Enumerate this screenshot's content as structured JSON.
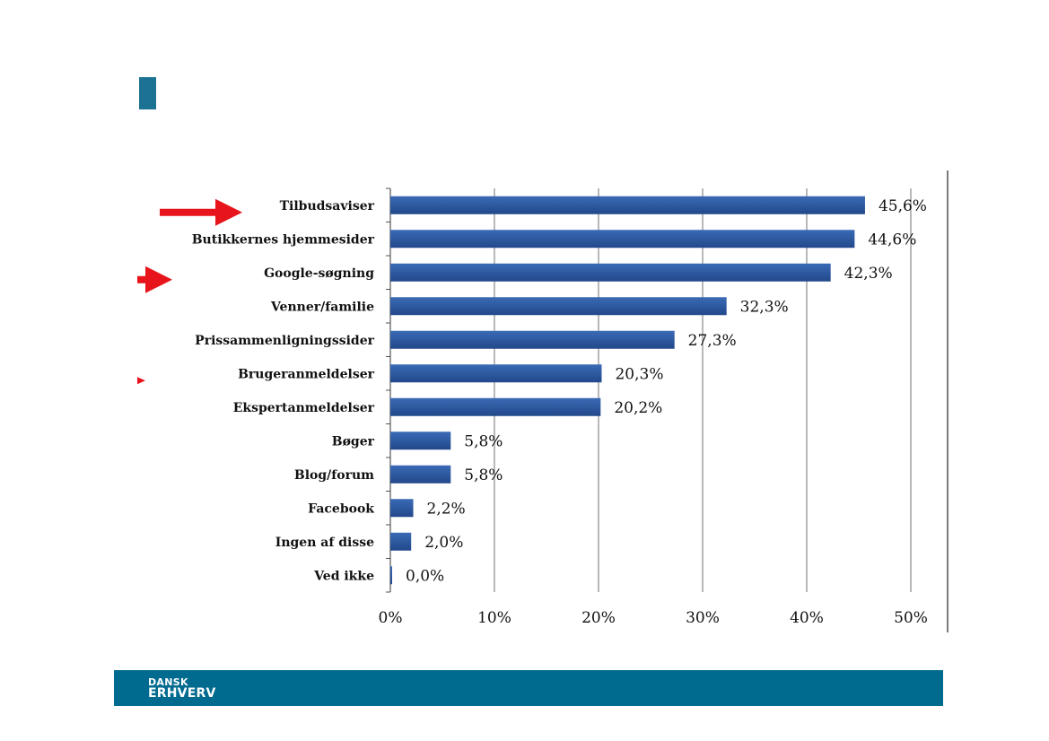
{
  "colors": {
    "accent": "#1c7293",
    "footer": "#006a8f",
    "bar": "#3a6bb5",
    "bar_dark": "#22488a",
    "arrow": "#e8141b",
    "grid": "#8a8a8a",
    "axis": "#555555"
  },
  "footer": {
    "logo_line1": "DANSK",
    "logo_line2": "ERHVERV"
  },
  "chart_data": {
    "type": "bar",
    "orientation": "horizontal",
    "categories": [
      "Tilbudsaviser",
      "Butikkernes hjemmesider",
      "Google-søgning",
      "Venner/familie",
      "Prissammenligningssider",
      "Brugeranmeldelser",
      "Ekspertanmeldelser",
      "Bøger",
      "Blog/forum",
      "Facebook",
      "Ingen af disse",
      "Ved ikke"
    ],
    "values": [
      45.6,
      44.6,
      42.3,
      32.3,
      27.3,
      20.3,
      20.2,
      5.8,
      5.8,
      2.2,
      2.0,
      0.0
    ],
    "value_labels": [
      "45,6%",
      "44,6%",
      "42,3%",
      "32,3%",
      "27,3%",
      "20,3%",
      "20,2%",
      "5,8%",
      "5,8%",
      "2,2%",
      "2,0%",
      "0,0%"
    ],
    "xlim": [
      0,
      50
    ],
    "xticks": [
      0,
      10,
      20,
      30,
      40,
      50
    ],
    "xtick_labels": [
      "0%",
      "10%",
      "20%",
      "30%",
      "40%",
      "50%"
    ],
    "grid": "vertical",
    "annotations": [
      {
        "type": "arrow",
        "category": "Tilbudsaviser"
      },
      {
        "type": "arrow",
        "category": "Google-søgning"
      },
      {
        "type": "arrow",
        "category": "Brugeranmeldelser"
      }
    ]
  }
}
